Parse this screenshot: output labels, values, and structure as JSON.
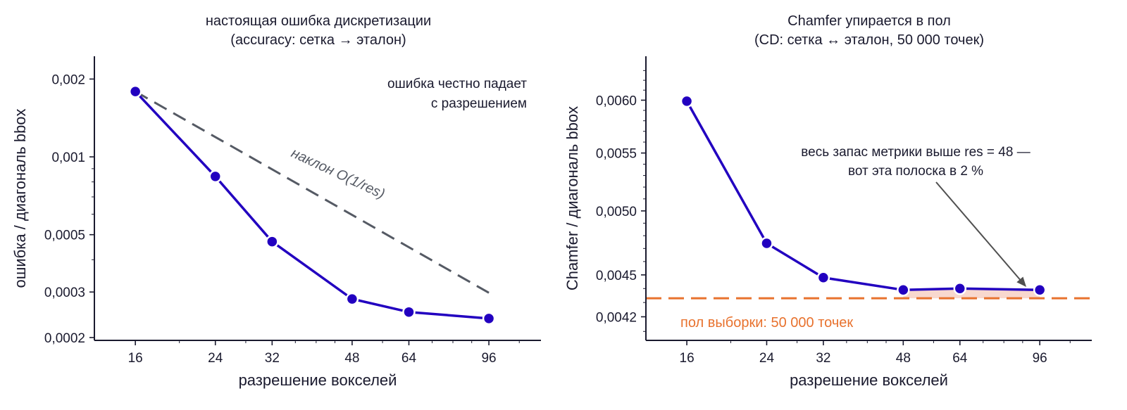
{
  "colors": {
    "series": "#2200c0",
    "reference": "#555a64",
    "floor": "#e8722e",
    "shade": "#f6cbbd",
    "axis": "#1a1a2e",
    "arrow": "#505050"
  },
  "chart_data": [
    {
      "type": "line",
      "title_line1": "настоящая ошибка дискретизации",
      "title_line2": "(accuracy: сетка → эталон)",
      "xlabel": "разрешение вокселей",
      "ylabel": "ошибка / диагональ bbox",
      "xscale": "log",
      "yscale": "log",
      "xlim": [
        13,
        125
      ],
      "ylim": [
        0.000195,
        0.00245
      ],
      "xticks": [
        16,
        24,
        32,
        48,
        64,
        96
      ],
      "xtick_labels": [
        "16",
        "24",
        "32",
        "48",
        "64",
        "96"
      ],
      "yticks": [
        0.0002,
        0.0003,
        0.0005,
        0.001,
        0.002
      ],
      "ytick_labels": [
        "0,0002",
        "0,0003",
        "0,0005",
        "0,001",
        "0,002"
      ],
      "series": [
        {
          "x": [
            16,
            24,
            32,
            48,
            64,
            96
          ],
          "values": [
            0.00179,
            0.00084,
            0.00047,
            0.000282,
            0.000251,
            0.000237
          ]
        }
      ],
      "reference_line": {
        "x": [
          16,
          96
        ],
        "values": [
          0.00179,
          0.000298
        ]
      },
      "reference_label": "наклон O(1/res)",
      "note_line1": "ошибка честно падает",
      "note_line2": "с разрешением",
      "grid": false
    },
    {
      "type": "line",
      "title_line1": "Chamfer упирается в пол",
      "title_line2": "(CD: сетка ↔ эталон, 50 000 точек)",
      "xlabel": "разрешение вокселей",
      "ylabel": "Chamfer / диагональ bbox",
      "xscale": "log",
      "yscale": "log",
      "xlim": [
        13,
        125
      ],
      "ylim": [
        0.00404,
        0.00645
      ],
      "xticks": [
        16,
        24,
        32,
        48,
        64,
        96
      ],
      "xtick_labels": [
        "16",
        "24",
        "32",
        "48",
        "64",
        "96"
      ],
      "yticks": [
        0.0042,
        0.0045,
        0.005,
        0.0055,
        0.006
      ],
      "ytick_labels": [
        "0,0042",
        "0,0045",
        "0,0050",
        "0,0055",
        "0,0060"
      ],
      "series": [
        {
          "x": [
            16,
            24,
            32,
            48,
            64,
            96
          ],
          "values": [
            0.00599,
            0.00474,
            0.00448,
            0.00439,
            0.0044,
            0.00439
          ]
        }
      ],
      "floor_value": 0.00433,
      "floor_label": "пол выборки: 50 000 точек",
      "annotation_line1": "весь запас метрики выше res = 48 —",
      "annotation_line2": "вот эта полоска в 2 %",
      "grid": false
    }
  ]
}
